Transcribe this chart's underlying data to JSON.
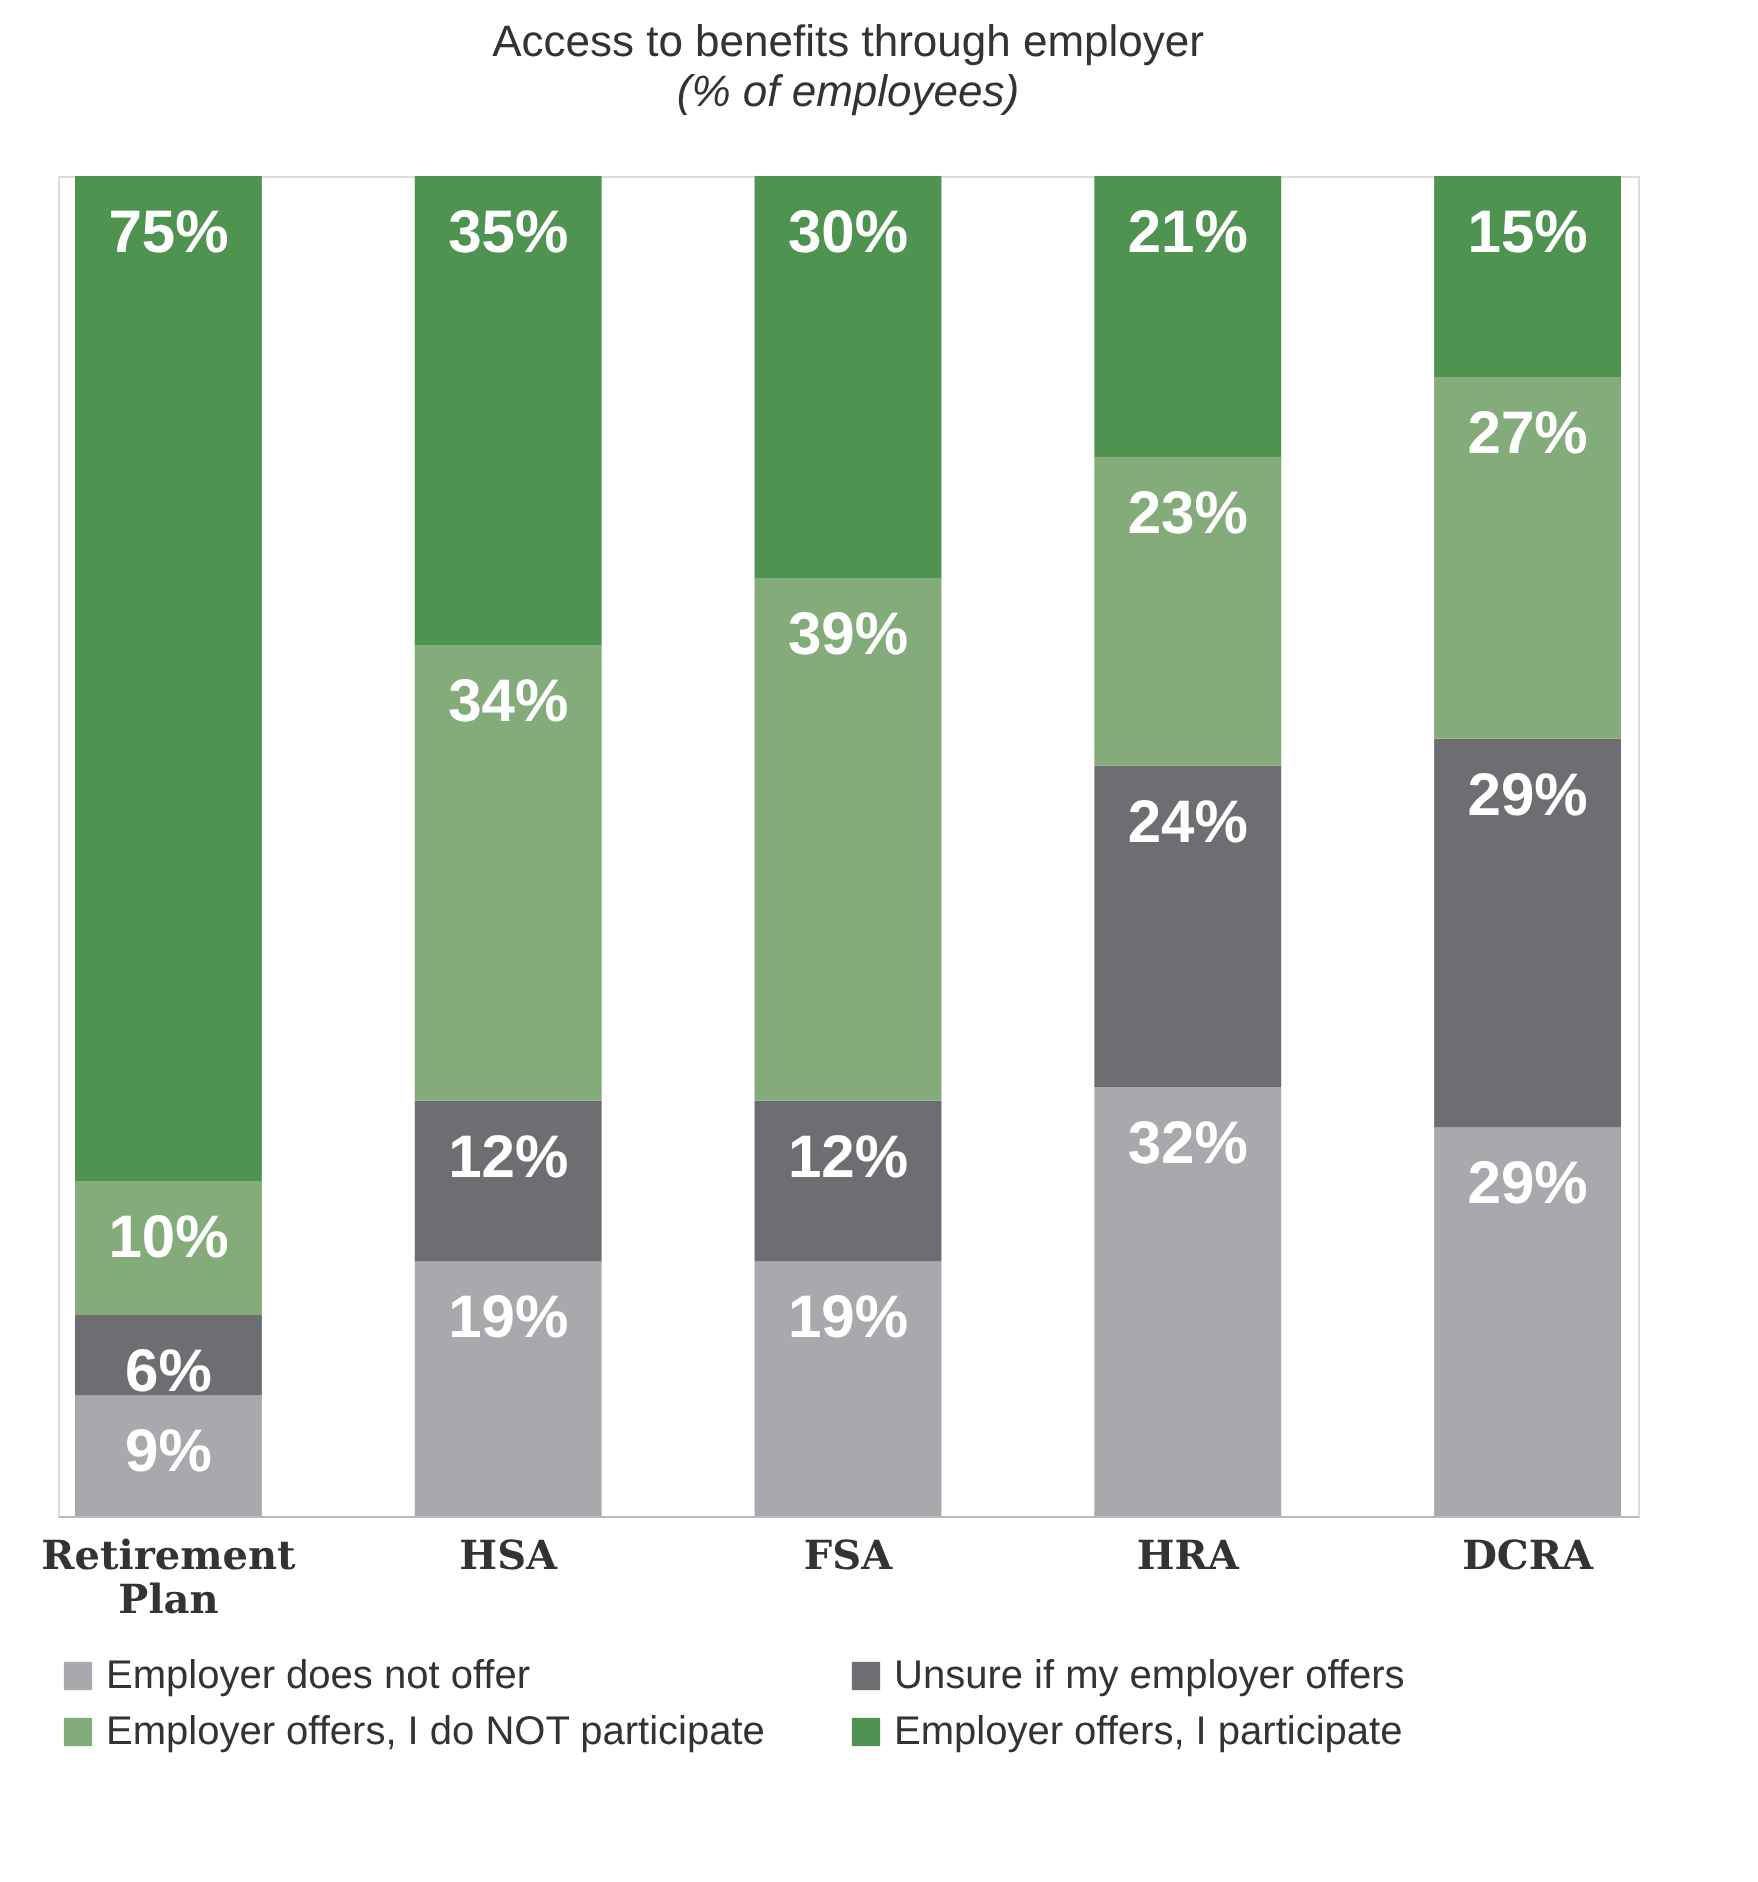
{
  "chart_data": {
    "type": "bar",
    "title": "Access to benefits through employer",
    "subtitle": "(% of employees)",
    "categories": [
      "Retirement Plan",
      "HSA",
      "FSA",
      "HRA",
      "DCRA"
    ],
    "stacked": true,
    "legend": "bottom",
    "grid": false,
    "series": [
      {
        "name": "Employer does not offer",
        "color": "#a8a9ad",
        "values": [
          9,
          19,
          19,
          32,
          29
        ],
        "value_labels": [
          "9%",
          "19%",
          "19%",
          "32%",
          "29%"
        ]
      },
      {
        "name": "Unsure if my employer offers",
        "color": "#6d6e71",
        "values": [
          6,
          12,
          12,
          24,
          29
        ],
        "value_labels": [
          "6%",
          "12%",
          "12%",
          "24%",
          "29%"
        ]
      },
      {
        "name": "Employer offers, I do NOT participate",
        "color": "#84ab7a",
        "values": [
          10,
          34,
          39,
          23,
          27
        ],
        "value_labels": [
          "10%",
          "34%",
          "39%",
          "23%",
          "27%"
        ]
      },
      {
        "name": "Employer offers, I participate",
        "color": "#4f9350",
        "values": [
          75,
          35,
          30,
          21,
          15
        ],
        "value_labels": [
          "75%",
          "35%",
          "30%",
          "21%",
          "15%"
        ]
      }
    ]
  }
}
